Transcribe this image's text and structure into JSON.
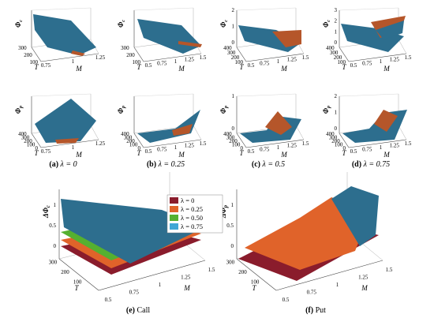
{
  "colors": {
    "lambda_0": "#8a1c2c",
    "lambda_025": "#e0632a",
    "lambda_050": "#55b030",
    "lambda_075": "#3fa7d6",
    "surface_top": "#2d6e8e",
    "surface_under": "#b5562a",
    "axis": "#444444"
  },
  "icons": {
    "legend_swatch": "rectangle-swatch"
  },
  "chart_data": [
    {
      "id": "a_call",
      "type": "surface",
      "zlabel": "Φ",
      "zsub": "c",
      "xlabel": "M",
      "ylabel": "T",
      "mticks": [
        "0.75",
        "1",
        "1.25"
      ],
      "tticks": [
        "100",
        "200",
        "300"
      ],
      "zticks": [],
      "caption": "λ = 0",
      "caption_letter": "(a)",
      "shape": "call",
      "lambda": "0"
    },
    {
      "id": "b_call",
      "type": "surface",
      "zlabel": "Φ",
      "zsub": "c",
      "xlabel": "M",
      "ylabel": "T",
      "mticks": [
        "0.5",
        "0.75",
        "1",
        "1.25",
        "1.5"
      ],
      "tticks": [
        "100",
        "200",
        "300"
      ],
      "zticks": [],
      "caption": "λ = 0.25",
      "caption_letter": "(b)",
      "shape": "call",
      "lambda": "0.25"
    },
    {
      "id": "c_call",
      "type": "surface",
      "zlabel": "Φ",
      "zsub": "c",
      "xlabel": "M",
      "ylabel": "T",
      "mticks": [
        "0.5",
        "0.75",
        "1",
        "1.25",
        "1.5"
      ],
      "tticks": [
        "100",
        "200",
        "300",
        "400"
      ],
      "zticks": [
        "0",
        "1",
        "2"
      ],
      "caption": "λ = 0.5",
      "caption_letter": "(c)",
      "shape": "call",
      "lambda": "0.5"
    },
    {
      "id": "d_call",
      "type": "surface",
      "zlabel": "Φ",
      "zsub": "c",
      "xlabel": "M",
      "ylabel": "T",
      "mticks": [
        "0.5",
        "0.75",
        "1",
        "1.25",
        "1.5"
      ],
      "tticks": [
        "100",
        "200",
        "300",
        "400"
      ],
      "zticks": [
        "0",
        "1",
        "2",
        "3"
      ],
      "caption": "λ = 0.75",
      "caption_letter": "(d)",
      "shape": "call",
      "lambda": "0.75"
    },
    {
      "id": "a_put",
      "type": "surface",
      "zlabel": "Φ",
      "zsub": "p",
      "xlabel": "M",
      "ylabel": "T",
      "mticks": [
        "0.75",
        "1",
        "1.25"
      ],
      "tticks": [
        "0",
        "100",
        "200",
        "300",
        "400"
      ],
      "zticks": [],
      "shape": "put",
      "lambda": "0"
    },
    {
      "id": "b_put",
      "type": "surface",
      "zlabel": "Φ",
      "zsub": "p",
      "xlabel": "M",
      "ylabel": "T",
      "mticks": [
        "0.5",
        "0.75",
        "1",
        "1.25",
        "1.5"
      ],
      "tticks": [
        "0",
        "100",
        "200",
        "300",
        "400"
      ],
      "zticks": [],
      "shape": "put",
      "lambda": "0.25"
    },
    {
      "id": "c_put",
      "type": "surface",
      "zlabel": "Φ",
      "zsub": "p",
      "xlabel": "M",
      "ylabel": "T",
      "mticks": [
        "0.5",
        "0.75",
        "1",
        "1.25",
        "1.5"
      ],
      "tticks": [
        "0",
        "100",
        "200",
        "300",
        "400"
      ],
      "zticks": [
        "0",
        "1"
      ],
      "shape": "put",
      "lambda": "0.5"
    },
    {
      "id": "d_put",
      "type": "surface",
      "zlabel": "Φ",
      "zsub": "p",
      "xlabel": "M",
      "ylabel": "T",
      "mticks": [
        "0.5",
        "0.75",
        "1",
        "1.25",
        "1.5"
      ],
      "tticks": [
        "0",
        "100",
        "200",
        "300",
        "400"
      ],
      "zticks": [
        "0",
        "1",
        "2"
      ],
      "shape": "put",
      "lambda": "0.75"
    },
    {
      "id": "e_call_diff",
      "type": "surface",
      "zlabel": "ΔΦ",
      "zsub": "c",
      "xlabel": "M",
      "ylabel": "T",
      "mticks": [
        "0.5",
        "0.75",
        "1",
        "1.25",
        "1.5"
      ],
      "tticks": [
        "100",
        "200",
        "300"
      ],
      "zticks": [
        "0",
        "0.5",
        "1"
      ],
      "caption": "Call",
      "caption_letter": "(e)",
      "shape": "call",
      "lambda": "all",
      "legend": [
        "λ = 0",
        "λ = 0.25",
        "λ = 0.50",
        "λ = 0.75"
      ]
    },
    {
      "id": "f_put_diff",
      "type": "surface",
      "zlabel": "ΔΦ",
      "zsub": "p",
      "xlabel": "M",
      "ylabel": "T",
      "mticks": [
        "0.5",
        "0.75",
        "1",
        "1.25",
        "1.5"
      ],
      "tticks": [
        "100",
        "200",
        "300"
      ],
      "zticks": [
        "0",
        "0.5",
        "1"
      ],
      "caption": "Put",
      "caption_letter": "(f)",
      "shape": "put",
      "lambda": "all"
    }
  ]
}
